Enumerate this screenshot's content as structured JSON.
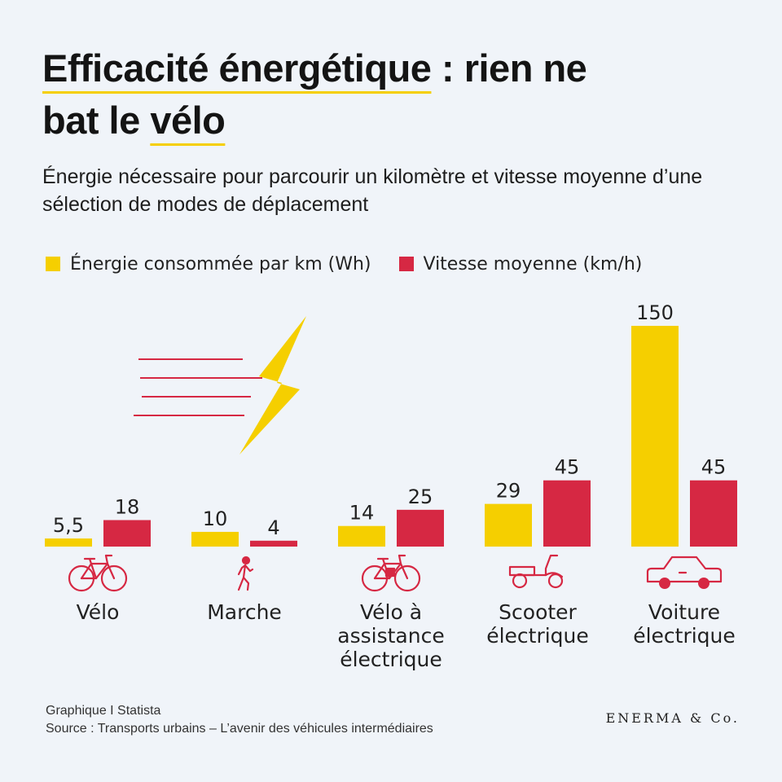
{
  "title": {
    "line1_hl": "Efficacité énergétique",
    "line1_rest": " : rien ne",
    "line2_pre": "bat le ",
    "line2_hl": "vélo"
  },
  "subtitle": "Énergie nécessaire pour parcourir un kilomètre et vitesse moyenne d’une sélection de modes de déplacement",
  "colors": {
    "energy": "#f5cf00",
    "speed": "#d62843",
    "icon": "#d62843",
    "background": "#f0f4f9"
  },
  "chart_data": {
    "type": "bar",
    "categories": [
      "Vélo",
      "Marche",
      "Vélo à assistance électrique",
      "Scooter électrique",
      "Voiture électrique"
    ],
    "category_lines": [
      [
        "Vélo"
      ],
      [
        "Marche"
      ],
      [
        "Vélo à",
        "assistance",
        "électrique"
      ],
      [
        "Scooter",
        "électrique"
      ],
      [
        "Voiture",
        "électrique"
      ]
    ],
    "icons": [
      "bicycle-icon",
      "walking-person-icon",
      "electric-bicycle-icon",
      "scooter-icon",
      "car-icon"
    ],
    "series": [
      {
        "name": "Énergie consommée par km (Wh)",
        "values": [
          5.5,
          10,
          14,
          29,
          150
        ],
        "labels": [
          "5,5",
          "10",
          "14",
          "29",
          "150"
        ]
      },
      {
        "name": "Vitesse moyenne (km/h)",
        "values": [
          18,
          4,
          25,
          45,
          45
        ],
        "labels": [
          "18",
          "4",
          "25",
          "45",
          "45"
        ]
      }
    ],
    "ylim": [
      0,
      150
    ],
    "grid": false,
    "legend": "top-left"
  },
  "footer": {
    "line1": "Graphique I Statista",
    "line2": "Source : Transports urbains – L’avenir des véhicules intermédiaires"
  },
  "brand": "ENERMA & Co."
}
